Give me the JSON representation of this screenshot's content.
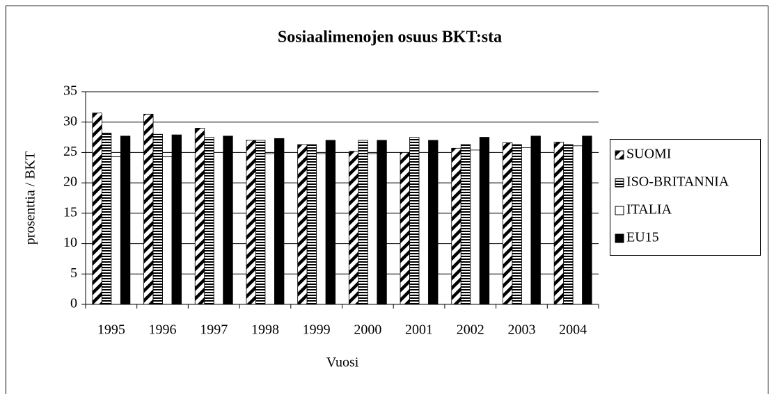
{
  "chart_data": {
    "type": "bar",
    "title": "Sosiaalimenojen osuus BKT:sta",
    "x_label": "Vuosi",
    "y_label": "prosenttia / BKT",
    "categories": [
      "1995",
      "1996",
      "1997",
      "1998",
      "1999",
      "2000",
      "2001",
      "2002",
      "2003",
      "2004"
    ],
    "series": [
      {
        "name": "SUOMI",
        "color": "#000000",
        "pattern": "diagonal",
        "values": [
          31.5,
          31.3,
          29.0,
          27.0,
          26.3,
          25.2,
          25.0,
          25.7,
          26.6,
          26.7
        ]
      },
      {
        "name": "ISO-BRITANNIA",
        "color": "#000000",
        "pattern": "horizontal",
        "values": [
          28.2,
          28.0,
          27.5,
          27.0,
          26.3,
          27.0,
          27.5,
          26.3,
          26.3,
          26.3
        ]
      },
      {
        "name": "ITALIA",
        "color": "#ffffff",
        "pattern": "solid",
        "values": [
          24.3,
          24.3,
          25.0,
          24.8,
          24.8,
          24.8,
          25.0,
          25.4,
          25.8,
          26.1
        ]
      },
      {
        "name": "EU15",
        "color": "#000000",
        "pattern": "solid",
        "values": [
          27.7,
          27.9,
          27.7,
          27.3,
          27.0,
          27.0,
          27.0,
          27.5,
          27.7,
          27.7
        ]
      }
    ],
    "ylim": [
      0,
      35
    ],
    "yticks": [
      0,
      5,
      10,
      15,
      20,
      25,
      30,
      35
    ],
    "grid": true,
    "legend": "right"
  }
}
